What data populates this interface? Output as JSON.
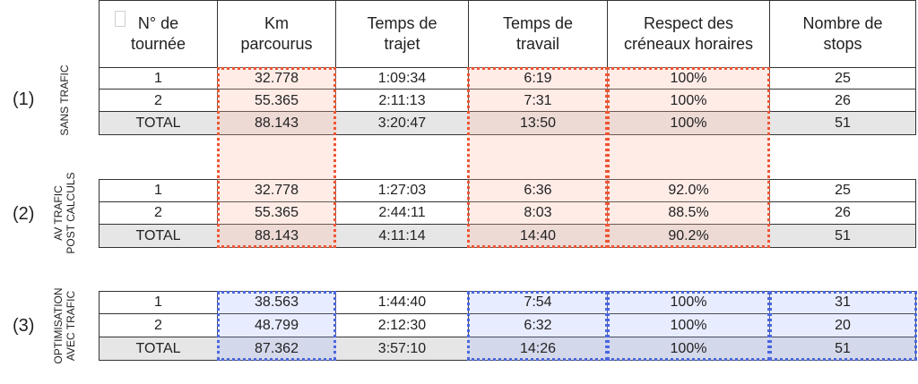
{
  "headers": {
    "col1": "N° de\ntournée",
    "col2": "Km\nparcourus",
    "col3": "Temps de\ntrajet",
    "col4": "Temps de\ntravail",
    "col5": "Respect des\ncréneaux horaires",
    "col6": "Nombre de\nstops"
  },
  "sections": [
    {
      "number": "(1)",
      "label": "SANS TRAFIC",
      "rows": [
        {
          "tournee": "1",
          "km": "32.778",
          "trajet": "1:09:34",
          "travail": "6:19",
          "respect": "100%",
          "stops": "25"
        },
        {
          "tournee": "2",
          "km": "55.365",
          "trajet": "2:11:13",
          "travail": "7:31",
          "respect": "100%",
          "stops": "26"
        },
        {
          "tournee": "TOTAL",
          "km": "88.143",
          "trajet": "3:20:47",
          "travail": "13:50",
          "respect": "100%",
          "stops": "51"
        }
      ]
    },
    {
      "number": "(2)",
      "label": "AV TRAFIC\nPOST CALCULS",
      "rows": [
        {
          "tournee": "1",
          "km": "32.778",
          "trajet": "1:27:03",
          "travail": "6:36",
          "respect": "92.0%",
          "stops": "25"
        },
        {
          "tournee": "2",
          "km": "55.365",
          "trajet": "2:44:11",
          "travail": "8:03",
          "respect": "88.5%",
          "stops": "26"
        },
        {
          "tournee": "TOTAL",
          "km": "88.143",
          "trajet": "4:11:14",
          "travail": "14:40",
          "respect": "90.2%",
          "stops": "51"
        }
      ]
    },
    {
      "number": "(3)",
      "label": "OPTIMISATION\nAVEC TRAFIC",
      "rows": [
        {
          "tournee": "1",
          "km": "38.563",
          "trajet": "1:44:40",
          "travail": "7:54",
          "respect": "100%",
          "stops": "31"
        },
        {
          "tournee": "2",
          "km": "48.799",
          "trajet": "2:12:30",
          "travail": "6:32",
          "respect": "100%",
          "stops": "20"
        },
        {
          "tournee": "TOTAL",
          "km": "87.362",
          "trajet": "3:57:10",
          "travail": "14:26",
          "respect": "100%",
          "stops": "51"
        }
      ]
    }
  ]
}
